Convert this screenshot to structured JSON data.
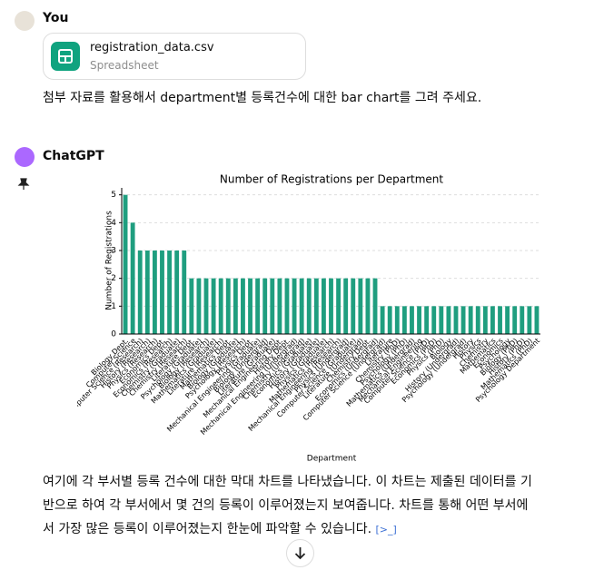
{
  "user": {
    "name": "You",
    "file_name": "registration_data.csv",
    "file_type": "Spreadsheet",
    "message": "첨부 자료를 활용해서 department별 등록건수에 대한 bar chart를 그려 주세요."
  },
  "assistant": {
    "name": "ChatGPT",
    "message": "여기에 각 부서별 등록 건수에 대한 막대 차트를 나타냈습니다. 이 차트는 제출된 데이터를 기반으로 하여 각 부서에서 몇 건의 등록이 이루어졌는지 보여줍니다. 차트를 통해 어떤 부서에서 가장 많은 등록이 이루어졌는지 한눈에 파악할 수 있습니다."
  },
  "chart_data": {
    "type": "bar",
    "title": "Number of Registrations per Department",
    "xlabel": "Department",
    "ylabel": "Number of Registrations",
    "categories": [
      "Biology Dept.",
      "Computer Science",
      "Computer Science (Research)",
      "History (Research)",
      "Physics (Research)",
      "Economics Dept.",
      "Economics (Research)",
      "Chemistry (Graduate)",
      "Chemistry (Research)",
      "Literature Dept.",
      "Psychology (Graduate)",
      "Biology (Research)",
      "Mathematics (Graduate)",
      "Literature (Research)",
      "Mathematics Dept.",
      "Biology (Graduate)",
      "Psychology (Research)",
      "Physics Dept.",
      "Mechanical Engineering (Graduate)",
      "Biology (Undergrad)",
      "Literature (Graduate)",
      "Mechanical Engineering Dept.",
      "History Dept.",
      "Mechanical Engineering (Undergrad)",
      "Chemistry (Undergrad)",
      "Economics (Graduate)",
      "History (Graduate)",
      "Physics (Graduate)",
      "Mathematics (Research)",
      "Mechanical Engineering (Research)",
      "Physics (Undergrad)",
      "Computer Science (Graduate)",
      "Literature (Undergrad)",
      "Chemistry Dept.",
      "Economics (Undergrad)",
      "Computer Science (Undergrad)",
      "Literature",
      "Chemistry (PhD)",
      "Psychology (PhD)",
      "Mathematics (Undergrad)",
      "Mechanical Engineering",
      "Computer Science (PhD)",
      "Economics (PhD)",
      "Physics (PhD)",
      "Biology",
      "History (Undergrad)",
      "Psychology (Undergrad)",
      "History",
      "Physics",
      "Chemistry",
      "Mathematics",
      "Economics",
      "Psychology",
      "Biology (PhD)",
      "History (PhD)",
      "Mathematics (PhD)",
      "Psychology Department"
    ],
    "values": [
      5,
      4,
      3,
      3,
      3,
      3,
      3,
      3,
      3,
      2,
      2,
      2,
      2,
      2,
      2,
      2,
      2,
      2,
      2,
      2,
      2,
      2,
      2,
      2,
      2,
      2,
      2,
      2,
      2,
      2,
      2,
      2,
      2,
      2,
      2,
      1,
      1,
      1,
      1,
      1,
      1,
      1,
      1,
      1,
      1,
      1,
      1,
      1,
      1,
      1,
      1,
      1,
      1,
      1,
      1,
      1,
      1
    ],
    "color": "#1f9e7f",
    "ylim": [
      0,
      5.25
    ],
    "yticks": [
      0,
      1,
      2,
      3,
      4,
      5
    ],
    "grid": true
  }
}
